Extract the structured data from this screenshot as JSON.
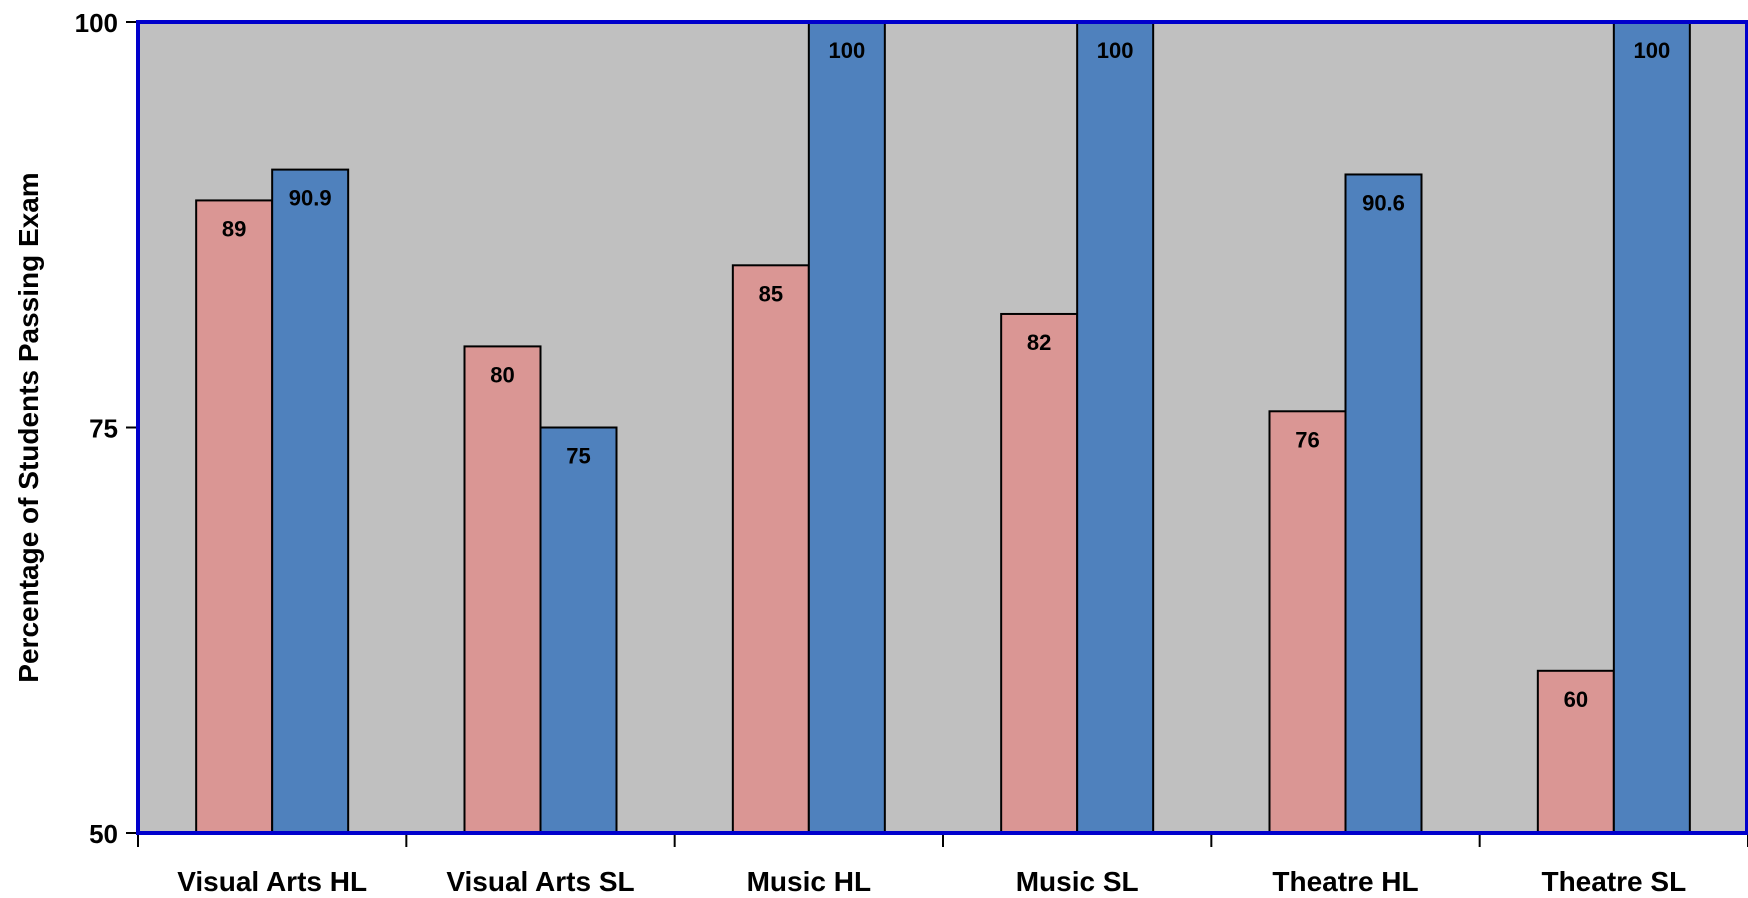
{
  "chart_data": {
    "type": "bar",
    "title": "",
    "xlabel": "",
    "ylabel": "Percentage of Students Passing Exam",
    "ylim": [
      50,
      100
    ],
    "yticks": [
      50,
      75,
      100
    ],
    "grid": false,
    "legend": "none",
    "categories": [
      "Visual Arts HL",
      "Visual Arts SL",
      "Music HL",
      "Music SL",
      "Theatre HL",
      "Theatre SL"
    ],
    "series": [
      {
        "values": [
          89,
          80,
          85,
          82,
          76,
          60
        ],
        "color": "#da9694"
      },
      {
        "values": [
          90.9,
          75,
          100,
          100,
          90.6,
          100
        ],
        "color": "#4f81bd"
      }
    ],
    "data_labels": [
      [
        "89",
        "80",
        "85",
        "82",
        "76",
        "60"
      ],
      [
        "90.9",
        "75",
        "100",
        "100",
        "90.6",
        "100"
      ]
    ],
    "plot_background": "#c0c0c0",
    "plot_border_color": "#0000cc"
  }
}
